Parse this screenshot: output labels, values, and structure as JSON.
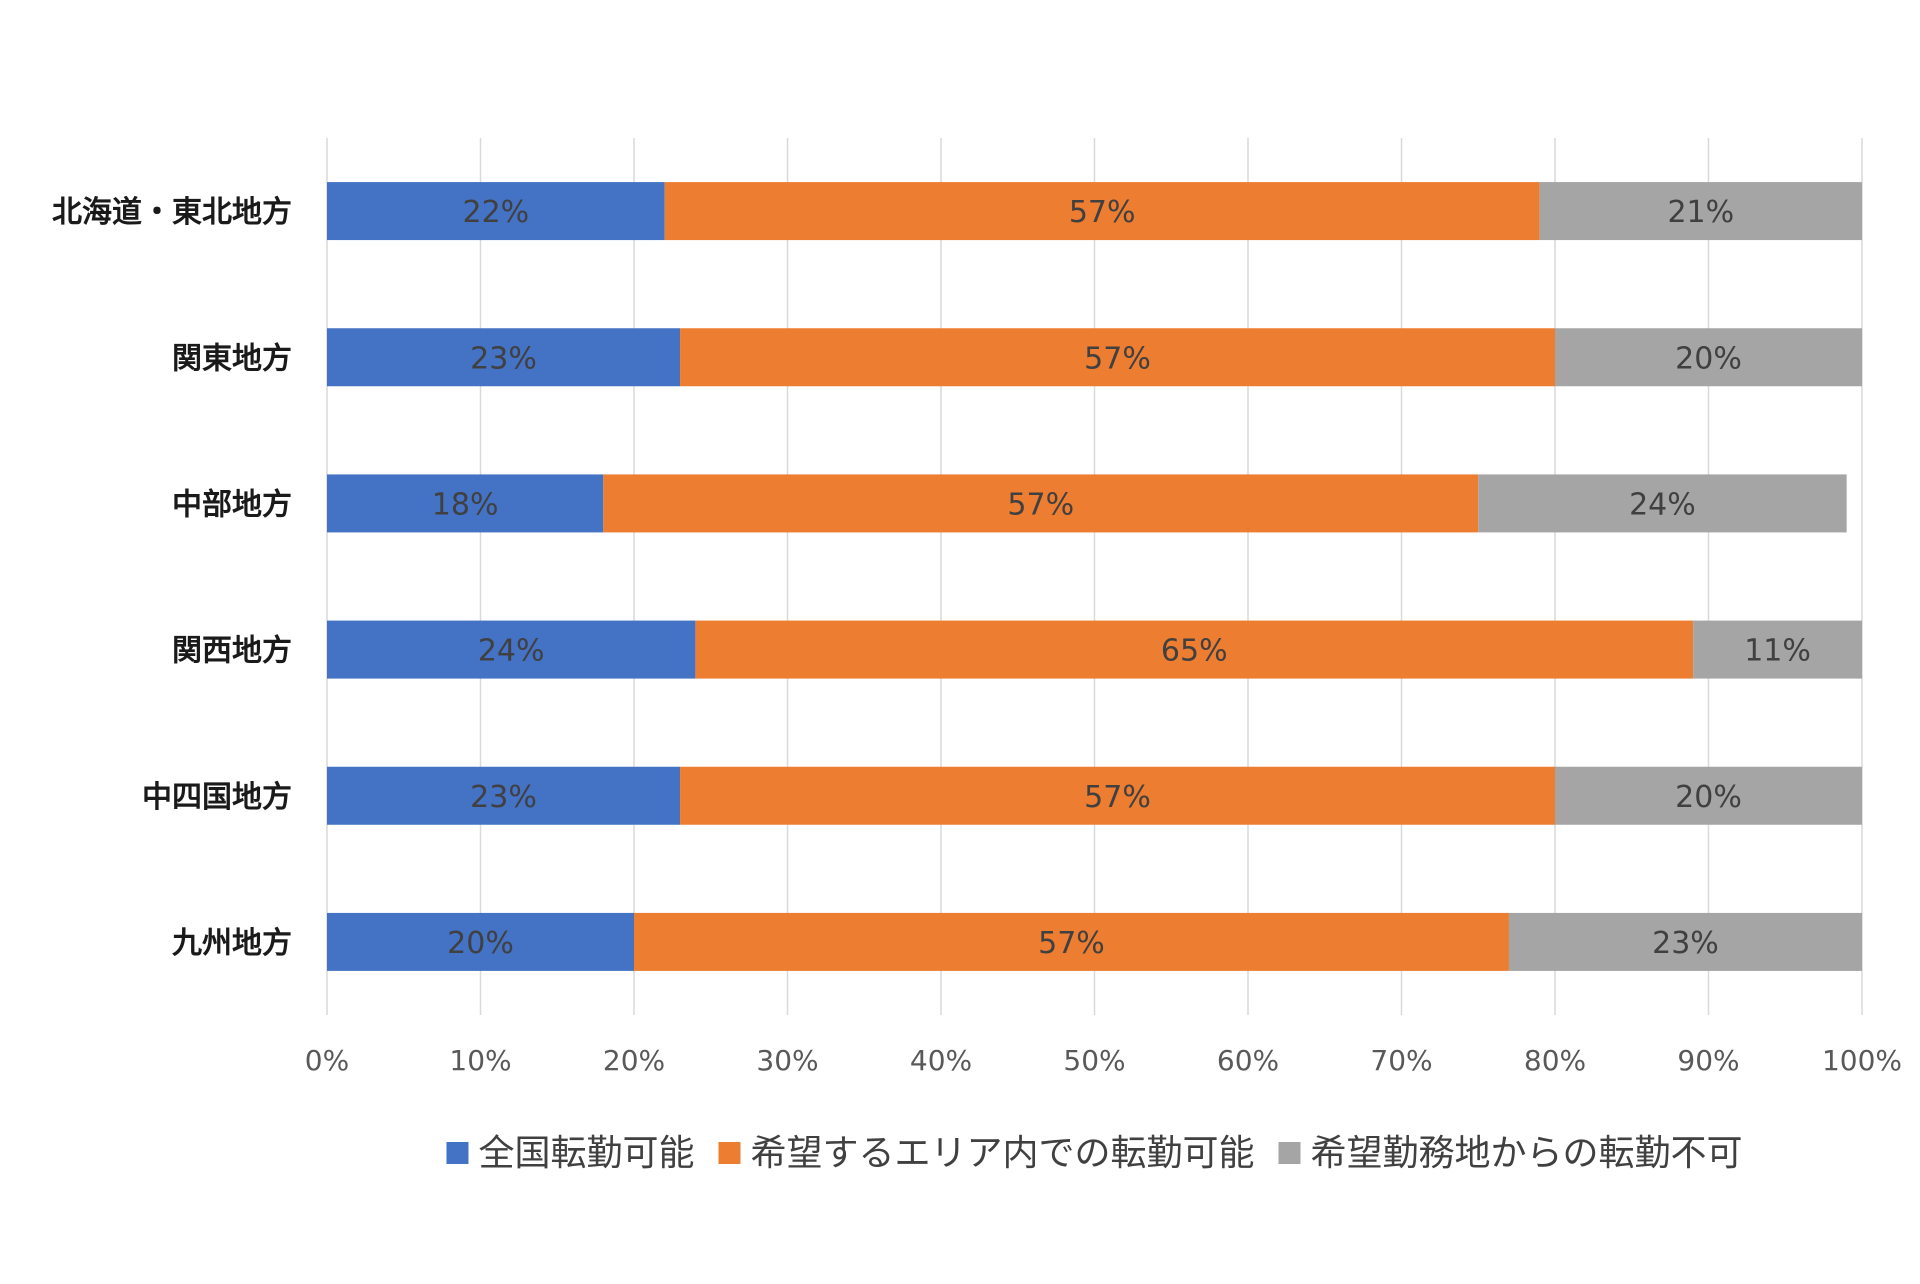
{
  "chart_data": {
    "type": "bar",
    "orientation": "horizontal",
    "stacked": true,
    "title": "",
    "xlabel": "",
    "ylabel": "",
    "xlim": [
      0,
      100
    ],
    "x_ticks": [
      "0%",
      "10%",
      "20%",
      "30%",
      "40%",
      "50%",
      "60%",
      "70%",
      "80%",
      "90%",
      "100%"
    ],
    "grid": true,
    "legend_position": "bottom",
    "categories": [
      "北海道・東北地方",
      "関東地方",
      "中部地方",
      "関西地方",
      "中四国地方",
      "九州地方"
    ],
    "series": [
      {
        "name": "全国転勤可能",
        "color": "#4472c4",
        "values": [
          22,
          23,
          18,
          24,
          23,
          20
        ],
        "labels": [
          "22%",
          "23%",
          "18%",
          "24%",
          "23%",
          "20%"
        ]
      },
      {
        "name": "希望するエリア内での転勤可能",
        "color": "#ed7d31",
        "values": [
          57,
          57,
          57,
          65,
          57,
          57
        ],
        "labels": [
          "57%",
          "57%",
          "57%",
          "65%",
          "57%",
          "57%"
        ]
      },
      {
        "name": "希望勤務地からの転勤不可",
        "color": "#a5a5a5",
        "values": [
          21,
          20,
          24,
          11,
          20,
          23
        ],
        "labels": [
          "21%",
          "20%",
          "24%",
          "11%",
          "20%",
          "23%"
        ]
      }
    ]
  }
}
